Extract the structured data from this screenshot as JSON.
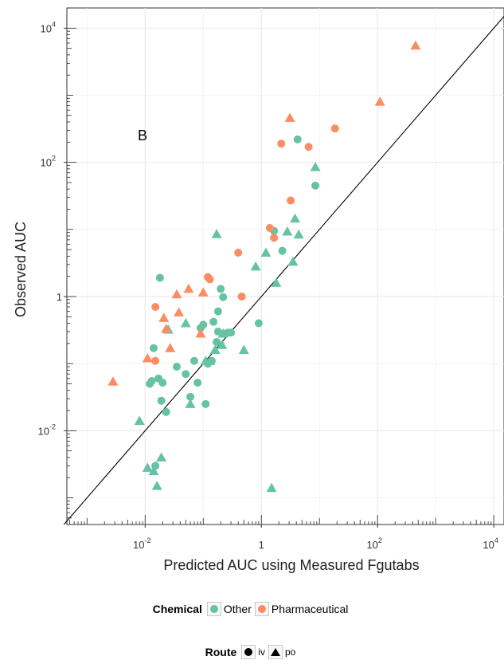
{
  "chart_data": {
    "type": "scatter",
    "panel_label": "B",
    "xlabel": "Predicted AUC using Measured Fgutabs",
    "ylabel": "Observed AUC",
    "x_scale": "log10",
    "y_scale": "log10",
    "xlim": [
      0.00045,
      15000
    ],
    "ylim": [
      0.0004,
      20000
    ],
    "x_ticks": [
      {
        "value": 0.01,
        "base": "10",
        "exp": "-2"
      },
      {
        "value": 1,
        "base": "1",
        "exp": ""
      },
      {
        "value": 100,
        "base": "10",
        "exp": "2"
      },
      {
        "value": 10000,
        "base": "10",
        "exp": "4"
      }
    ],
    "y_ticks": [
      {
        "value": 0.01,
        "base": "10",
        "exp": "-2"
      },
      {
        "value": 1,
        "base": "1",
        "exp": ""
      },
      {
        "value": 100,
        "base": "10",
        "exp": "2"
      },
      {
        "value": 10000,
        "base": "10",
        "exp": "4"
      }
    ],
    "reference_line": "identity (y = x)",
    "grid": true,
    "legend_position": "bottom",
    "colors": {
      "Other": "#66c2a5",
      "Pharmaceutical": "#fc8d62",
      "Line": "#000000"
    },
    "series": [
      {
        "name": "Other",
        "iv": [
          [
            0.018,
            1.9
          ],
          [
            0.014,
            0.17
          ],
          [
            0.013,
            0.055
          ],
          [
            0.012,
            0.05
          ],
          [
            0.017,
            0.06
          ],
          [
            0.019,
            0.028
          ],
          [
            0.02,
            0.052
          ],
          [
            0.023,
            0.019
          ],
          [
            0.035,
            0.09
          ],
          [
            0.05,
            0.07
          ],
          [
            0.06,
            0.032
          ],
          [
            0.07,
            0.11
          ],
          [
            0.08,
            0.052
          ],
          [
            0.09,
            0.34
          ],
          [
            0.1,
            0.38
          ],
          [
            0.11,
            0.025
          ],
          [
            0.12,
            0.1
          ],
          [
            0.14,
            0.11
          ],
          [
            0.15,
            0.42
          ],
          [
            0.17,
            0.21
          ],
          [
            0.18,
            0.6
          ],
          [
            0.18,
            0.3
          ],
          [
            0.2,
            1.3
          ],
          [
            0.22,
            0.98
          ],
          [
            0.23,
            0.28
          ],
          [
            0.27,
            0.29
          ],
          [
            0.3,
            0.29
          ],
          [
            0.9,
            0.4
          ],
          [
            1.65,
            9.5
          ],
          [
            2.3,
            4.8
          ],
          [
            4.2,
            220
          ],
          [
            8.5,
            45
          ],
          [
            0.015,
            0.003
          ]
        ],
        "po": [
          [
            0.008,
            0.014
          ],
          [
            0.011,
            0.0028
          ],
          [
            0.014,
            0.0025
          ],
          [
            0.016,
            0.0015
          ],
          [
            0.019,
            0.004
          ],
          [
            0.025,
            0.32
          ],
          [
            0.05,
            0.4
          ],
          [
            0.06,
            0.025
          ],
          [
            0.11,
            0.11
          ],
          [
            0.13,
            0.11
          ],
          [
            0.16,
            0.16
          ],
          [
            0.17,
            8.5
          ],
          [
            0.21,
            0.19
          ],
          [
            0.22,
            0.28
          ],
          [
            0.5,
            0.16
          ],
          [
            0.8,
            2.8
          ],
          [
            1.2,
            4.5
          ],
          [
            1.5,
            0.0014
          ],
          [
            1.8,
            1.6
          ],
          [
            2.8,
            9.3
          ],
          [
            3.5,
            3.3
          ],
          [
            3.8,
            14.5
          ],
          [
            4.4,
            8.4
          ],
          [
            8.5,
            85
          ]
        ]
      },
      {
        "name": "Pharmaceutical",
        "iv": [
          [
            0.015,
            0.7
          ],
          [
            0.015,
            0.11
          ],
          [
            0.12,
            1.95
          ],
          [
            0.13,
            1.8
          ],
          [
            0.4,
            4.5
          ],
          [
            0.46,
            1.0
          ],
          [
            1.4,
            10.5
          ],
          [
            1.65,
            7.5
          ],
          [
            2.2,
            190
          ],
          [
            3.2,
            27
          ],
          [
            6.5,
            170
          ],
          [
            18.5,
            320
          ]
        ],
        "po": [
          [
            0.0028,
            0.054
          ],
          [
            0.011,
            0.12
          ],
          [
            0.021,
            0.48
          ],
          [
            0.023,
            0.33
          ],
          [
            0.027,
            0.17
          ],
          [
            0.035,
            1.08
          ],
          [
            0.038,
            0.58
          ],
          [
            0.056,
            1.3
          ],
          [
            0.09,
            0.28
          ],
          [
            0.1,
            1.15
          ],
          [
            3.1,
            460
          ],
          [
            110,
            800
          ],
          [
            450,
            5500
          ]
        ]
      }
    ]
  },
  "legend": {
    "chemical_title": "Chemical",
    "other_label": "Other",
    "pharma_label": "Pharmaceutical",
    "route_title": "Route",
    "iv_label": "iv",
    "po_label": "po"
  }
}
